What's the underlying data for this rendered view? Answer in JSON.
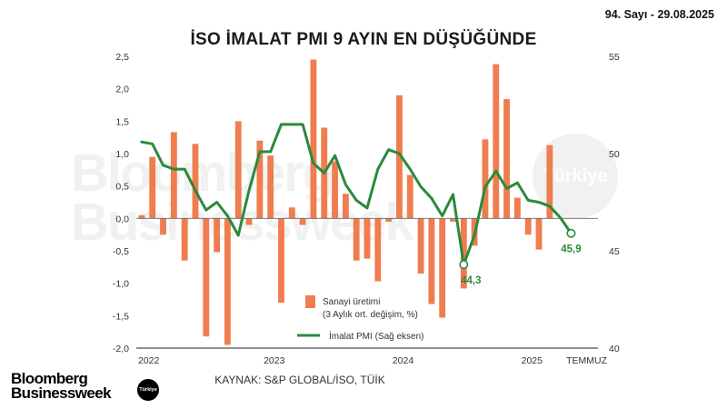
{
  "header": {
    "issue": "94. Sayı - 29.08.2025",
    "title": "İSO İMALAT PMI 9 AYIN EN DÜŞÜĞÜNDE"
  },
  "source": "KAYNAK: S&P GLOBAL/İSO, TÜİK",
  "branding": {
    "line1": "Bloomberg",
    "line2": "Businessweek",
    "badge": "Türkiye",
    "watermark_line1": "Bloomberg",
    "watermark_line2": "Businessweek",
    "watermark_badge": "Türkiye"
  },
  "colors": {
    "bars": "#ef7d4f",
    "line": "#2a8a3c",
    "axis_text": "#333333",
    "zero_line": "#666666"
  },
  "chart_data": {
    "type": "bar+line",
    "left_axis": {
      "ticks": [
        "2,5",
        "2,0",
        "1,5",
        "1,0",
        "0,5",
        "0,0",
        "-0,5",
        "-1,0",
        "-1,5",
        "-2,0"
      ],
      "ylim": [
        -2.0,
        2.5
      ]
    },
    "right_axis": {
      "ticks": [
        "55",
        "50",
        "45",
        "40"
      ],
      "ylim": [
        40,
        55
      ]
    },
    "x_labels": [
      "2022",
      "2023",
      "2024",
      "2025",
      "TEMMUZ"
    ],
    "months": 43,
    "bar_series": {
      "name_line1": "Sanayi üretimi",
      "name_line2": "(3 Aylık ort. değişim, %)",
      "values": [
        0.05,
        0.95,
        -0.25,
        1.33,
        -0.65,
        1.15,
        -1.82,
        -0.52,
        -1.95,
        1.5,
        -0.1,
        1.2,
        0.97,
        -1.3,
        0.17,
        -0.1,
        2.45,
        1.4,
        0.88,
        0.38,
        -0.65,
        -0.62,
        -0.97,
        -0.05,
        1.9,
        0.67,
        -0.85,
        -1.32,
        -1.53,
        -0.05,
        -1.08,
        -0.42,
        1.22,
        2.38,
        1.84,
        0.32,
        -0.25,
        -0.48,
        1.13
      ]
    },
    "line_series": {
      "name": "İmalat PMI (Sağ eksen)",
      "values": [
        50.6,
        50.5,
        49.4,
        49.2,
        49.2,
        48.1,
        47.1,
        47.5,
        46.8,
        45.8,
        48.1,
        50.1,
        50.1,
        51.5,
        51.5,
        51.5,
        49.5,
        49.0,
        49.9,
        48.4,
        47.6,
        47.2,
        49.2,
        50.2,
        50.0,
        49.2,
        48.3,
        47.7,
        46.8,
        47.9,
        44.3,
        45.8,
        48.3,
        49.1,
        48.2,
        48.5,
        47.6,
        47.5,
        47.3,
        46.7,
        45.9
      ]
    },
    "callouts": [
      {
        "label": "44,3",
        "index": 30
      },
      {
        "label": "45,9",
        "index": 40
      }
    ]
  }
}
